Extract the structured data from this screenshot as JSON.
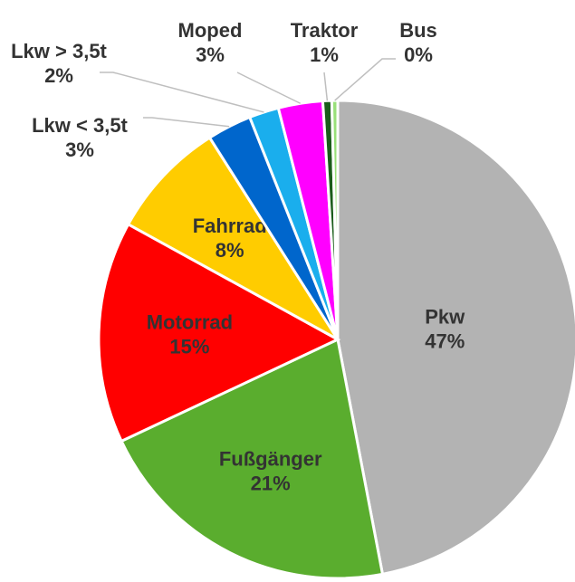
{
  "chart_data": {
    "type": "pie",
    "categories": [
      "Pkw",
      "Fußgänger",
      "Motorrad",
      "Fahrrad",
      "Lkw < 3,5t",
      "Lkw > 3,5t",
      "Moped",
      "Traktor",
      "Bus"
    ],
    "values": [
      47,
      21,
      15,
      8,
      3,
      2,
      3,
      0.6,
      0.4
    ],
    "value_labels": [
      "47%",
      "21%",
      "15%",
      "8%",
      "3%",
      "2%",
      "3%",
      "1%",
      "0%"
    ],
    "colors": [
      "#b3b3b3",
      "#5aad2e",
      "#ff0000",
      "#ffcc00",
      "#0066cc",
      "#1aaeed",
      "#ff00ff",
      "#1a5c1a",
      "#99e07a"
    ]
  }
}
